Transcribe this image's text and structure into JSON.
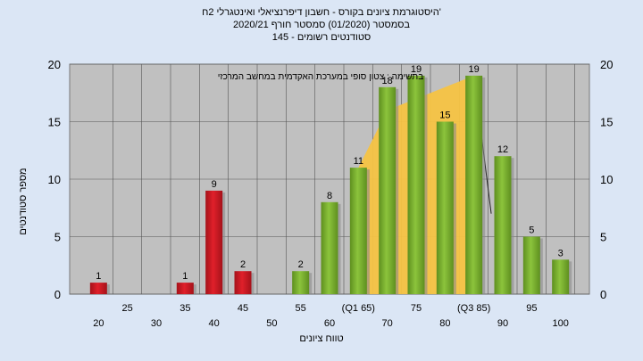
{
  "titles": {
    "line1": "היסטוגרמת ציונים בקורס - חשבון דיפרנציאלי ואינטגרלי 2ח'",
    "line2": "בסמסטר  (01/2020)  סמסטר חורף  2020/21",
    "line3": "סטודנטים רשומים - 145"
  },
  "chart_data": {
    "type": "bar",
    "title": "היסטוגרמת ציונים בקורס - חשבון דיפרנציאלי ואינטגרלי 2ח'",
    "xlabel": "טווח ציונים",
    "ylabel": "מספר סטודנטים",
    "annotation": "בתשימה : צטון סופי במערכת האקדמית במחשב המרכזי",
    "ylim": [
      0,
      20
    ],
    "yticks": [
      0,
      5,
      10,
      15,
      20
    ],
    "grid": true,
    "x_tick_labels": [
      {
        "x": 20,
        "label": "20"
      },
      {
        "x": 25,
        "label": "25"
      },
      {
        "x": 30,
        "label": "30"
      },
      {
        "x": 35,
        "label": "35"
      },
      {
        "x": 40,
        "label": "40"
      },
      {
        "x": 45,
        "label": "45"
      },
      {
        "x": 50,
        "label": "50"
      },
      {
        "x": 55,
        "label": "55"
      },
      {
        "x": 60,
        "label": "60"
      },
      {
        "x": 65,
        "label": "(Q1 65)"
      },
      {
        "x": 70,
        "label": "70"
      },
      {
        "x": 75,
        "label": "75"
      },
      {
        "x": 80,
        "label": "80"
      },
      {
        "x": 85,
        "label": "(Q3 85)"
      },
      {
        "x": 90,
        "label": "90"
      },
      {
        "x": 95,
        "label": "95"
      },
      {
        "x": 100,
        "label": "100"
      }
    ],
    "bars": [
      {
        "x": 20,
        "value": 1,
        "color": "#e0202a"
      },
      {
        "x": 35,
        "value": 1,
        "color": "#e0202a"
      },
      {
        "x": 40,
        "value": 9,
        "color": "#e0202a"
      },
      {
        "x": 45,
        "value": 2,
        "color": "#e0202a"
      },
      {
        "x": 55,
        "value": 2,
        "color": "#8cc43c"
      },
      {
        "x": 60,
        "value": 8,
        "color": "#8cc43c"
      },
      {
        "x": 65,
        "value": 11,
        "color": "#8cc43c"
      },
      {
        "x": 70,
        "value": 18,
        "color": "#8cc43c"
      },
      {
        "x": 75,
        "value": 19,
        "color": "#8cc43c"
      },
      {
        "x": 80,
        "value": 15,
        "color": "#8cc43c"
      },
      {
        "x": 85,
        "value": 19,
        "color": "#8cc43c"
      },
      {
        "x": 90,
        "value": 12,
        "color": "#8cc43c"
      },
      {
        "x": 95,
        "value": 5,
        "color": "#8cc43c"
      },
      {
        "x": 100,
        "value": 3,
        "color": "#8cc43c"
      }
    ],
    "quartile_area": {
      "color": "#f6c343",
      "x": [
        65,
        70,
        85
      ],
      "y": [
        11,
        16,
        19
      ]
    },
    "line_segment": {
      "color": "#222222",
      "x": [
        85,
        88
      ],
      "y": [
        19,
        7
      ]
    },
    "colors": {
      "plot_bg": "#c0c0c0",
      "fail": "#e0202a",
      "pass": "#8cc43c",
      "page_bg": "#dbe6f5"
    }
  }
}
